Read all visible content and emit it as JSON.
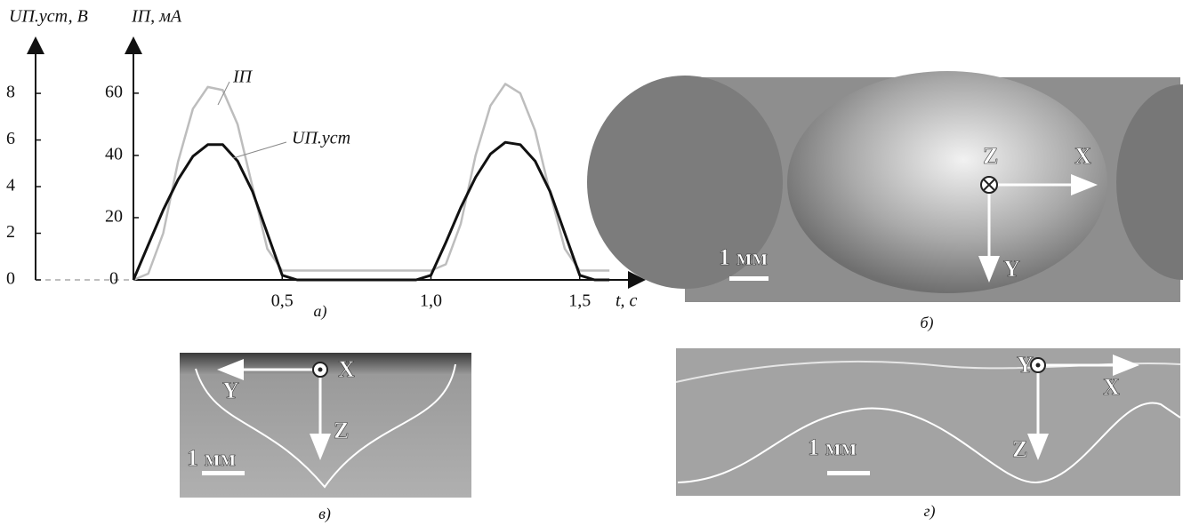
{
  "chart_data": {
    "type": "line",
    "y_label": "UП.уст, В",
    "y2_label": "IП, мА",
    "x_label": "t, с",
    "caption": "а)",
    "x": [
      0,
      0.05,
      0.1,
      0.15,
      0.2,
      0.25,
      0.3,
      0.35,
      0.4,
      0.45,
      0.5,
      0.55,
      0.6,
      0.65,
      0.7,
      0.75,
      0.8,
      0.85,
      0.9,
      0.95,
      1.0,
      1.05,
      1.1,
      1.15,
      1.2,
      1.25,
      1.3,
      1.35,
      1.4,
      1.45,
      1.5,
      1.55,
      1.6
    ],
    "series": [
      {
        "name": "IП",
        "color": "#bdbdbd",
        "axis": "y2",
        "values": [
          0,
          2,
          15,
          38,
          55,
          62,
          61,
          50,
          30,
          10,
          3,
          3,
          3,
          3,
          3,
          3,
          3,
          3,
          3,
          3,
          3,
          5,
          18,
          40,
          56,
          63,
          60,
          48,
          28,
          10,
          3,
          3,
          3
        ]
      },
      {
        "name": "UП.уст",
        "color": "#111111",
        "values": [
          0,
          1.5,
          3.0,
          4.3,
          5.3,
          5.8,
          5.8,
          5.1,
          3.8,
          2.0,
          0.2,
          0,
          0,
          0,
          0,
          0,
          0,
          0,
          0,
          0,
          0.2,
          1.6,
          3.1,
          4.4,
          5.4,
          5.9,
          5.8,
          5.1,
          3.8,
          2.0,
          0.2,
          0,
          0
        ]
      }
    ],
    "xlim": [
      0,
      1.71
    ],
    "xticks": [
      {
        "value": 0.5,
        "label": "0,5"
      },
      {
        "value": 1.0,
        "label": "1,0"
      },
      {
        "value": 1.5,
        "label": "1,5"
      }
    ],
    "ylim": [
      0,
      10.29
    ],
    "yticks": [
      0,
      2,
      4,
      6,
      8
    ],
    "y2lim": [
      0,
      77.1
    ],
    "y2ticks": [
      0,
      20,
      40,
      60
    ]
  },
  "panels": [
    {
      "caption": "б)",
      "scale": "1 мм",
      "axes": [
        "Z",
        "X",
        "Y"
      ]
    },
    {
      "caption": "в)",
      "scale": "1 мм",
      "axes": [
        "X",
        "Y",
        "Z"
      ]
    },
    {
      "caption": "г)",
      "scale": "1 мм",
      "axes": [
        "Y",
        "X",
        "Z"
      ]
    }
  ]
}
